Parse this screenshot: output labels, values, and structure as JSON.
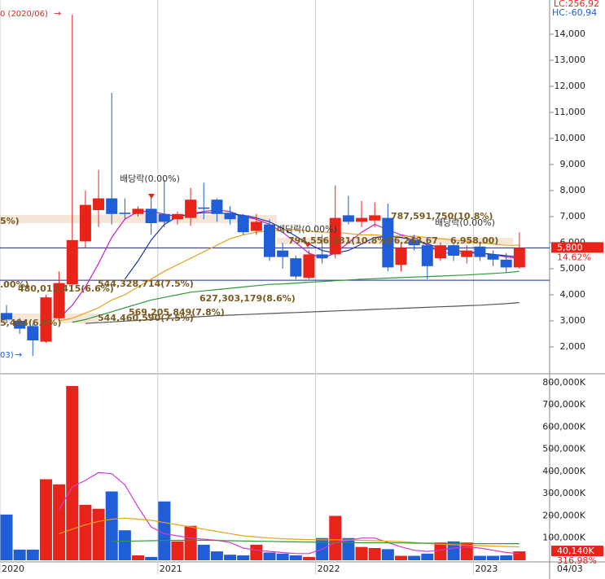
{
  "chart_data": [
    {
      "type": "candlestick",
      "categories": [
        "2020",
        null,
        null,
        null,
        null,
        null,
        null,
        null,
        null,
        null,
        null,
        null,
        "2021",
        null,
        null,
        null,
        null,
        null,
        null,
        null,
        null,
        null,
        null,
        null,
        "2022",
        null,
        null,
        null,
        null,
        null,
        null,
        null,
        null,
        null,
        null,
        null,
        "2023",
        null,
        null,
        null
      ],
      "open": [
        3300,
        3000,
        2800,
        2200,
        3100,
        4400,
        6050,
        7250,
        7700,
        7150,
        7100,
        7300,
        7100,
        6900,
        6950,
        7350,
        7650,
        7150,
        7050,
        6450,
        6700,
        5700,
        5400,
        4650,
        5550,
        5550,
        7050,
        6800,
        6850,
        6950,
        5150,
        6100,
        5900,
        5400,
        5900,
        5450,
        5850,
        5550,
        5350,
        5050
      ],
      "high": [
        3600,
        3100,
        2900,
        4000,
        4900,
        14750,
        8000,
        8800,
        11750,
        7700,
        7400,
        7700,
        8400,
        7200,
        8100,
        8300,
        7700,
        7400,
        7100,
        7100,
        6900,
        6000,
        5500,
        5700,
        6300,
        8200,
        7800,
        7600,
        7550,
        7500,
        6000,
        6300,
        6100,
        6000,
        6000,
        5900,
        6000,
        5700,
        5600,
        6400
      ],
      "low": [
        2900,
        2500,
        1650,
        2150,
        3000,
        4300,
        5800,
        6600,
        6700,
        6900,
        7000,
        6300,
        6600,
        6700,
        6650,
        6900,
        6800,
        6700,
        6300,
        6300,
        5300,
        5000,
        4600,
        4600,
        5200,
        5400,
        6700,
        6600,
        6600,
        4900,
        4900,
        5700,
        4600,
        5300,
        5300,
        5200,
        5300,
        5100,
        4850,
        5000
      ],
      "close": [
        3050,
        2700,
        2250,
        3900,
        4450,
        6100,
        7450,
        7700,
        7100,
        7100,
        7300,
        6750,
        6800,
        7100,
        7650,
        7300,
        7100,
        6900,
        6400,
        6800,
        5450,
        5450,
        4700,
        5550,
        5400,
        6950,
        6800,
        6950,
        7050,
        5050,
        5800,
        5900,
        5100,
        5900,
        5500,
        5700,
        5450,
        5350,
        5050,
        5800
      ],
      "up_color": "#e8231a",
      "down_color": "#1f5ed6",
      "lines": [
        {
          "color": "#c21fc9",
          "values": [
            null,
            null,
            null,
            null,
            3100,
            3600,
            4300,
            5200,
            6200,
            6900,
            7200,
            7200,
            7100,
            7000,
            7100,
            7200,
            7250,
            7200,
            7000,
            6900,
            6700,
            6400,
            6000,
            5600,
            5400,
            5600,
            6000,
            6400,
            6700,
            6500,
            6300,
            6200,
            5900,
            5600,
            5600,
            5600,
            5600,
            5550,
            5450,
            5400
          ]
        },
        {
          "color": "#1a2fa8",
          "values": [
            null,
            null,
            null,
            null,
            null,
            null,
            null,
            null,
            null,
            4600,
            5300,
            6100,
            6700,
            7000,
            7100,
            7150,
            7150,
            7100,
            7050,
            6950,
            6800,
            6550,
            6250,
            5950,
            5700,
            5600,
            5700,
            5950,
            6200,
            6250,
            6200,
            6100,
            5950,
            5800,
            5700,
            5650,
            5600,
            5550,
            5500,
            5450
          ]
        },
        {
          "color": "#e8a21a",
          "values": [
            null,
            null,
            null,
            null,
            3000,
            3100,
            3300,
            3500,
            3800,
            4000,
            4300,
            4600,
            4900,
            5150,
            5400,
            5650,
            5900,
            6150,
            6300,
            6400,
            6450,
            6500,
            6500,
            6450,
            6400,
            6400,
            6350,
            6300,
            6300,
            6250,
            6250,
            6250,
            6200,
            6150,
            6100,
            6050,
            6000,
            5950,
            5900,
            5900
          ]
        },
        {
          "color": "#2a9a3a",
          "values": [
            null,
            null,
            null,
            null,
            null,
            2950,
            3050,
            3200,
            3350,
            3500,
            3650,
            3800,
            3900,
            4000,
            4100,
            4150,
            4200,
            4250,
            4300,
            4350,
            4400,
            4420,
            4450,
            4480,
            4510,
            4540,
            4570,
            4600,
            4620,
            4640,
            4660,
            4680,
            4700,
            4720,
            4740,
            4760,
            4790,
            4820,
            4850,
            4900
          ]
        },
        {
          "color": "#555555",
          "values": [
            null,
            null,
            null,
            null,
            null,
            null,
            2900,
            2930,
            2960,
            2990,
            3020,
            3050,
            3080,
            3110,
            3140,
            3170,
            3200,
            3220,
            3240,
            3260,
            3280,
            3300,
            3320,
            3340,
            3360,
            3380,
            3400,
            3420,
            3440,
            3460,
            3480,
            3500,
            3520,
            3540,
            3560,
            3580,
            3600,
            3630,
            3660,
            3700
          ]
        }
      ],
      "hlines": [
        {
          "value": 5800,
          "color": "#1a2a8a"
        },
        {
          "value": 4560,
          "color": "#1a2a8a"
        }
      ],
      "ylim": [
        1000,
        15312
      ],
      "yticks": [
        {
          "value": 2000,
          "label": "2,000"
        },
        {
          "value": 3000,
          "label": "3,000"
        },
        {
          "value": 4000,
          "label": "4,000"
        },
        {
          "value": 5000,
          "label": "5,000"
        },
        {
          "value": 6000,
          "label": "6,000"
        },
        {
          "value": 7000,
          "label": "7,000"
        },
        {
          "value": 8000,
          "label": "8,000"
        },
        {
          "value": 9000,
          "label": "9,000"
        },
        {
          "value": 10000,
          "label": "10,000"
        },
        {
          "value": 11000,
          "label": "11,000"
        },
        {
          "value": 12000,
          "label": "12,000"
        },
        {
          "value": 13000,
          "label": "13,000"
        },
        {
          "value": 14000,
          "label": "14,000"
        }
      ],
      "last_label": "5,800",
      "change_label": "14.62%",
      "high_note": "0 (2020/06)",
      "low_note": "03)",
      "lc": "LC:256,92",
      "hc": "HC:-60,94",
      "annotations": [
        "배당락(0.00%)",
        "배당락(0.00%)",
        "배당락(0.00%)",
        "5%)",
        "787,591,750(10.8%)",
        "794,556,581(10.8%)",
        "76,243,67",
        "6,958,00)",
        ".00%)",
        "480,012,415(6.6%)",
        "544,328,714(7.5%)",
        "627,303,179(8.6%)",
        "569,205,849(7.8%)",
        "544,460,590(7.5%)",
        "5,404(6.0%)"
      ]
    },
    {
      "type": "bar",
      "values": [
        206000,
        48000,
        48000,
        365000,
        342000,
        785000,
        250000,
        232000,
        310000,
        135000,
        22000,
        15000,
        265000,
        85000,
        155000,
        70000,
        40000,
        25000,
        22000,
        70000,
        35000,
        30000,
        22000,
        15000,
        100000,
        200000,
        100000,
        60000,
        55000,
        50000,
        20000,
        20000,
        30000,
        80000,
        85000,
        80000,
        20000,
        20000,
        22000,
        40140
      ],
      "lines": [
        {
          "color": "#d43ad0",
          "values": [
            null,
            null,
            null,
            null,
            230000,
            330000,
            360000,
            395000,
            390000,
            340000,
            240000,
            150000,
            120000,
            110000,
            100000,
            95000,
            90000,
            80000,
            55000,
            45000,
            40000,
            35000,
            30000,
            30000,
            50000,
            80000,
            90000,
            100000,
            100000,
            80000,
            60000,
            45000,
            40000,
            45000,
            55000,
            60000,
            55000,
            45000,
            35000,
            30000
          ]
        },
        {
          "color": "#e8a21a",
          "values": [
            null,
            null,
            null,
            null,
            120000,
            140000,
            160000,
            175000,
            185000,
            190000,
            185000,
            180000,
            170000,
            160000,
            150000,
            140000,
            130000,
            120000,
            110000,
            105000,
            100000,
            97000,
            95000,
            93000,
            92000,
            92000,
            91000,
            90000,
            88000,
            86000,
            84000,
            80000,
            76000,
            72000,
            70000,
            68000,
            66000,
            64000,
            62000,
            60000
          ]
        },
        {
          "color": "#2a9a3a",
          "values": [
            null,
            null,
            null,
            null,
            null,
            null,
            null,
            null,
            85000,
            86000,
            87000,
            88000,
            89000,
            90000,
            90000,
            90000,
            89000,
            88000,
            87000,
            86000,
            85000,
            84000,
            83000,
            82000,
            81000,
            80000,
            80000,
            79000,
            79000,
            78000,
            78000,
            77000,
            77000,
            76000,
            76000,
            76000,
            75000,
            75000,
            75000,
            75000
          ]
        }
      ],
      "ylim": [
        0,
        840000
      ],
      "yticks": [
        {
          "value": 100000,
          "label": "100,000K"
        },
        {
          "value": 200000,
          "label": "200,000K"
        },
        {
          "value": 300000,
          "label": "300,000K"
        },
        {
          "value": 400000,
          "label": "400,000K"
        },
        {
          "value": 500000,
          "label": "500,000K"
        },
        {
          "value": 600000,
          "label": "600,000K"
        },
        {
          "value": 700000,
          "label": "700,000K"
        },
        {
          "value": 800000,
          "label": "800,000K"
        }
      ],
      "last_label": "40,140K",
      "ratio_label": "316.98%",
      "date_label": "04/03"
    }
  ]
}
